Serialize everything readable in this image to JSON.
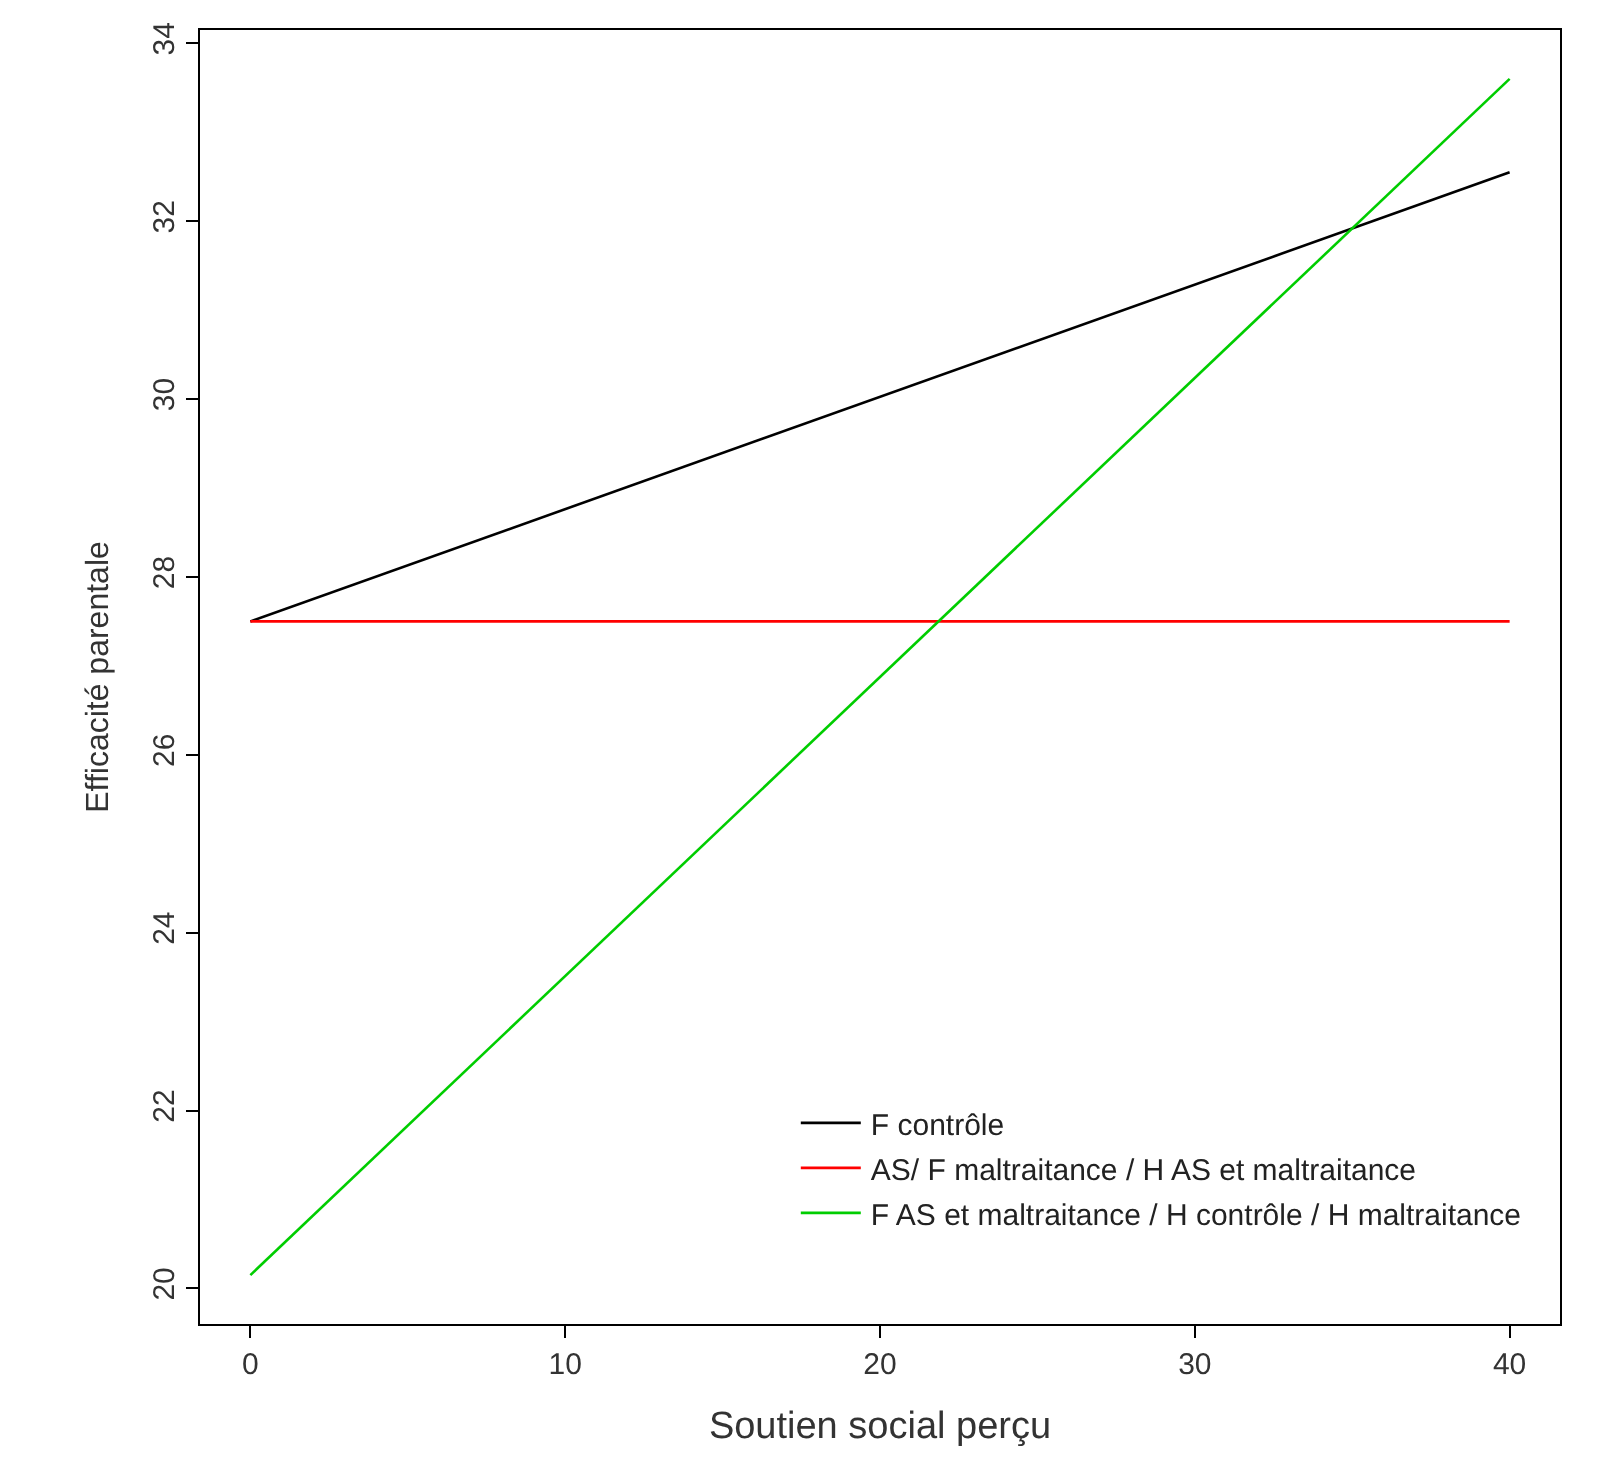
{
  "chart_data": {
    "type": "line",
    "xlabel": "Soutien social perçu",
    "ylabel": "Efficacité parentale",
    "x": [
      0,
      40
    ],
    "series": [
      {
        "name": "F contrôle",
        "color": "#000000",
        "values": [
          27.5,
          32.55
        ]
      },
      {
        "name": "AS/ F maltraitance / H AS et maltraitance",
        "color": "#ff0000",
        "values": [
          27.5,
          27.5
        ]
      },
      {
        "name": "F AS et maltraitance / H contrôle / H maltraitance",
        "color": "#00cd00",
        "values": [
          20.15,
          33.6
        ]
      }
    ],
    "xlim": [
      -1.6,
      41.6
    ],
    "xticks": [
      0,
      10,
      20,
      30,
      40
    ],
    "ylim": [
      19.6,
      34.15
    ],
    "yticks": [
      20,
      22,
      24,
      26,
      28,
      30,
      32,
      34
    ],
    "legend": "bottom right",
    "marker": "none",
    "line_style": "solid"
  }
}
